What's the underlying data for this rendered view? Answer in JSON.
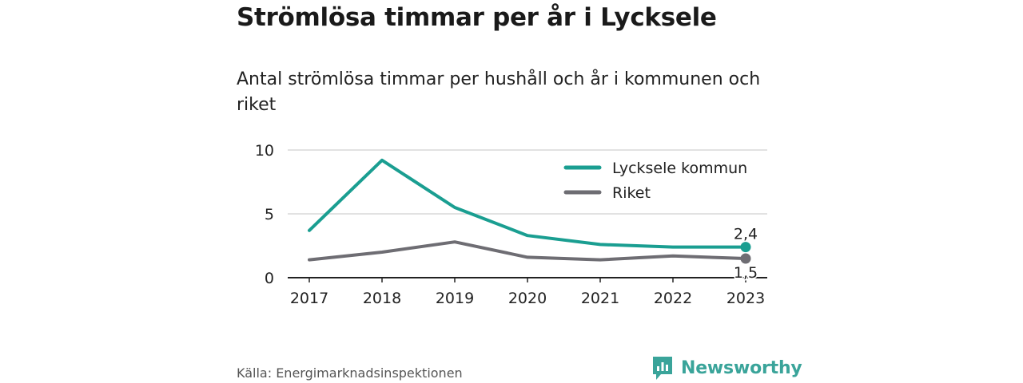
{
  "title": "Strömlösa timmar per år i Lycksele",
  "subtitle": "Antal strömlösa timmar per hushåll och år i kommunen och riket",
  "source": "Källa: Energimarknadsinspektionen",
  "brand": {
    "name": "Newsworthy",
    "icon": "newsworthy-logo-icon",
    "color": "#3aa49a"
  },
  "chart_data": {
    "type": "line",
    "categories": [
      "2017",
      "2018",
      "2019",
      "2020",
      "2021",
      "2022",
      "2023"
    ],
    "series": [
      {
        "name": "Lycksele kommun",
        "color": "#1a9e91",
        "values": [
          3.7,
          9.2,
          5.5,
          3.3,
          2.6,
          2.4,
          2.4
        ],
        "end_label": "2,4"
      },
      {
        "name": "Riket",
        "color": "#6e6d73",
        "values": [
          1.4,
          2.0,
          2.8,
          1.6,
          1.4,
          1.7,
          1.5
        ],
        "end_label": "1,5"
      }
    ],
    "yticks": [
      "0",
      "5",
      "10"
    ],
    "ylim": [
      0,
      10
    ],
    "grid": true,
    "legend_position": "top-right"
  }
}
